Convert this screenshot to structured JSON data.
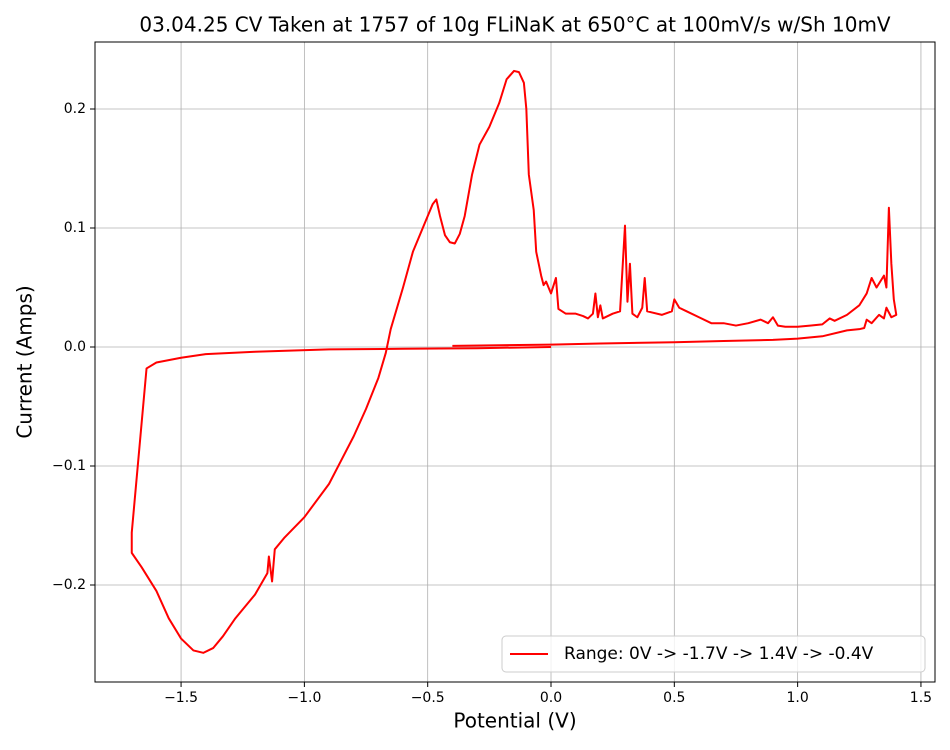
{
  "chart_data": {
    "type": "line",
    "title": "03.04.25 CV Taken at 1757 of 10g FLiNaK at 650°C at 100mV/s w/Sh 10mV",
    "xlabel": "Potential (V)",
    "ylabel": "Current (Amps)",
    "x": [
      0,
      -0.3,
      -0.6,
      -0.9,
      -1.2,
      -1.4,
      -1.5,
      -1.6,
      -1.64,
      -1.7,
      -1.7,
      -1.66,
      -1.6,
      -1.55,
      -1.5,
      -1.45,
      -1.41,
      -1.37,
      -1.33,
      -1.28,
      -1.2,
      -1.15,
      -1.144,
      -1.131,
      -1.12,
      -1.08,
      -1.0,
      -0.9,
      -0.85,
      -0.8,
      -0.75,
      -0.7,
      -0.67,
      -0.65,
      -0.6,
      -0.56,
      -0.52,
      -0.48,
      -0.465,
      -0.45,
      -0.43,
      -0.41,
      -0.39,
      -0.37,
      -0.35,
      -0.32,
      -0.29,
      -0.25,
      -0.21,
      -0.18,
      -0.15,
      -0.13,
      -0.11,
      -0.1,
      -0.09,
      -0.07,
      -0.06,
      -0.04,
      -0.03,
      -0.02,
      -0.01,
      0.0,
      0.02,
      0.03,
      0.06,
      0.1,
      0.13,
      0.15,
      0.17,
      0.18,
      0.19,
      0.2,
      0.21,
      0.25,
      0.28,
      0.3,
      0.31,
      0.32,
      0.33,
      0.35,
      0.37,
      0.38,
      0.39,
      0.45,
      0.49,
      0.5,
      0.52,
      0.55,
      0.6,
      0.65,
      0.7,
      0.75,
      0.8,
      0.85,
      0.88,
      0.9,
      0.92,
      0.95,
      1.0,
      1.05,
      1.1,
      1.13,
      1.15,
      1.2,
      1.25,
      1.28,
      1.3,
      1.32,
      1.35,
      1.36,
      1.37,
      1.38,
      1.39,
      1.4,
      1.38,
      1.36,
      1.35,
      1.33,
      1.3,
      1.28,
      1.27,
      1.25,
      1.2,
      1.1,
      1.0,
      0.9,
      0.7,
      0.5,
      0.2,
      0.0,
      -0.4
    ],
    "series": [
      {
        "name": "Range: 0V -> -1.7V -> 1.4V -> -0.4V",
        "color": "#ff0000",
        "values": [
          0.0,
          -0.001,
          -0.0015,
          -0.002,
          -0.004,
          -0.006,
          -0.009,
          -0.013,
          -0.018,
          -0.156,
          -0.173,
          -0.185,
          -0.205,
          -0.228,
          -0.245,
          -0.255,
          -0.257,
          -0.253,
          -0.243,
          -0.228,
          -0.208,
          -0.19,
          -0.176,
          -0.197,
          -0.17,
          -0.16,
          -0.143,
          -0.115,
          -0.095,
          -0.075,
          -0.052,
          -0.026,
          -0.005,
          0.015,
          0.05,
          0.08,
          0.1,
          0.12,
          0.124,
          0.11,
          0.094,
          0.088,
          0.087,
          0.095,
          0.11,
          0.145,
          0.17,
          0.185,
          0.205,
          0.225,
          0.232,
          0.231,
          0.222,
          0.2,
          0.145,
          0.115,
          0.08,
          0.06,
          0.052,
          0.055,
          0.05,
          0.045,
          0.058,
          0.032,
          0.028,
          0.028,
          0.026,
          0.024,
          0.028,
          0.045,
          0.025,
          0.035,
          0.024,
          0.028,
          0.03,
          0.102,
          0.038,
          0.07,
          0.028,
          0.025,
          0.033,
          0.058,
          0.03,
          0.027,
          0.03,
          0.04,
          0.033,
          0.03,
          0.025,
          0.02,
          0.02,
          0.018,
          0.02,
          0.023,
          0.02,
          0.025,
          0.018,
          0.017,
          0.017,
          0.018,
          0.019,
          0.024,
          0.022,
          0.027,
          0.035,
          0.045,
          0.058,
          0.05,
          0.06,
          0.05,
          0.117,
          0.07,
          0.04,
          0.027,
          0.025,
          0.033,
          0.024,
          0.027,
          0.02,
          0.023,
          0.016,
          0.015,
          0.014,
          0.009,
          0.007,
          0.006,
          0.005,
          0.004,
          0.003,
          0.002,
          0.001
        ]
      }
    ],
    "xlim": [
      -1.849,
      1.557
    ],
    "ylim": [
      -0.2815,
      0.2563
    ],
    "xticks": [
      {
        "value": -1.5,
        "label": "−1.5"
      },
      {
        "value": -1.0,
        "label": "−1.0"
      },
      {
        "value": -0.5,
        "label": "−0.5"
      },
      {
        "value": 0,
        "label": "0.0"
      },
      {
        "value": 0.5,
        "label": "0.5"
      },
      {
        "value": 1.0,
        "label": "1.0"
      },
      {
        "value": 1.5,
        "label": "1.5"
      }
    ],
    "yticks": [
      {
        "value": -0.2,
        "label": "−0.2"
      },
      {
        "value": -0.1,
        "label": "−0.1"
      },
      {
        "value": 0,
        "label": "0.0"
      },
      {
        "value": 0.1,
        "label": "0.1"
      },
      {
        "value": 0.2,
        "label": "0.2"
      }
    ],
    "grid": true,
    "legend": "lower right"
  }
}
